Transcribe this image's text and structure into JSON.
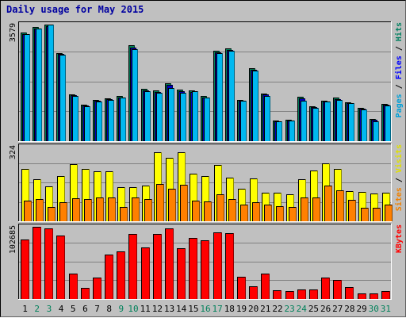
{
  "title": "Daily usage for May 2015",
  "chart_data": [
    {
      "type": "bar",
      "panel": "pages-files-hits",
      "categories": [
        "1",
        "2",
        "3",
        "4",
        "5",
        "6",
        "7",
        "8",
        "9",
        "10",
        "11",
        "12",
        "13",
        "14",
        "15",
        "16",
        "17",
        "18",
        "19",
        "20",
        "21",
        "22",
        "23",
        "24",
        "25",
        "26",
        "27",
        "28",
        "29",
        "30",
        "31"
      ],
      "weekend_days": [
        "2",
        "3",
        "9",
        "10",
        "16",
        "17",
        "23",
        "24",
        "30",
        "31"
      ],
      "ymax_label": "3579",
      "ylim": [
        0,
        3579
      ],
      "right_label": [
        {
          "text": "Pages",
          "color": "#00a0d8"
        },
        {
          "text": " / ",
          "color": "#000000"
        },
        {
          "text": "Files",
          "color": "#0000ff"
        },
        {
          "text": " / ",
          "color": "#000000"
        },
        {
          "text": "Hits",
          "color": "#008060"
        }
      ],
      "series": [
        {
          "name": "Hits",
          "color": "#00805a",
          "values": [
            3333,
            3503,
            3579,
            2711,
            1432,
            1114,
            1261,
            1305,
            1383,
            2952,
            1601,
            1547,
            1789,
            1571,
            1563,
            1385,
            2767,
            2854,
            1274,
            2246,
            1466,
            638,
            664,
            1355,
            1069,
            1248,
            1331,
            1198,
            1024,
            687,
            1151
          ]
        },
        {
          "name": "Files",
          "color": "#0000c0",
          "values": [
            3280,
            3460,
            3520,
            2690,
            1400,
            1090,
            1230,
            1280,
            1340,
            2880,
            1560,
            1510,
            1740,
            1530,
            1520,
            1350,
            2720,
            2810,
            1245,
            2200,
            1430,
            610,
            640,
            1320,
            1040,
            1210,
            1290,
            1170,
            1000,
            660,
            1120
          ]
        },
        {
          "name": "Pages",
          "color": "#00b8f0",
          "values": [
            3290,
            3453,
            3579,
            2658,
            1384,
            1074,
            1217,
            1258,
            1331,
            2825,
            1527,
            1497,
            1632,
            1484,
            1527,
            1335,
            2711,
            2784,
            1240,
            2164,
            1394,
            603,
            630,
            1245,
            1034,
            1211,
            1264,
            1161,
            965,
            603,
            1107
          ]
        }
      ]
    },
    {
      "type": "bar",
      "panel": "sites-visits",
      "ymax_label": "324",
      "ylim": [
        0,
        324
      ],
      "right_label": [
        {
          "text": "Sites",
          "color": "#f08000"
        },
        {
          "text": " / ",
          "color": "#000000"
        },
        {
          "text": "Visits",
          "color": "#e0e000"
        }
      ],
      "series": [
        {
          "name": "Visits",
          "color": "#ffff00",
          "values": [
            226,
            184,
            151,
            198,
            249,
            226,
            218,
            217,
            148,
            148,
            155,
            301,
            277,
            301,
            206,
            198,
            245,
            190,
            141,
            185,
            124,
            123,
            117,
            181,
            220,
            250,
            228,
            131,
            127,
            120,
            125
          ]
        },
        {
          "name": "Sites",
          "color": "#ff8000",
          "values": [
            88,
            98,
            62,
            83,
            99,
            98,
            102,
            102,
            63,
            105,
            98,
            163,
            141,
            157,
            90,
            85,
            117,
            98,
            73,
            81,
            73,
            65,
            62,
            103,
            103,
            155,
            135,
            92,
            60,
            57,
            74
          ]
        }
      ]
    },
    {
      "type": "bar",
      "panel": "kbytes",
      "ymax_label": "102685",
      "ylim": [
        0,
        102685
      ],
      "right_label": [
        {
          "text": "KBytes",
          "color": "#ff0000"
        }
      ],
      "series": [
        {
          "name": "KBytes",
          "color": "#ff0000",
          "values": [
            84963,
            102685,
            100147,
            89889,
            35965,
            15953,
            29963,
            62971,
            67967,
            92892,
            72871,
            92882,
            99976,
            71931,
            86838,
            83937,
            94877,
            93914,
            31970,
            17943,
            35991,
            11948,
            11014,
            13007,
            13007,
            29974,
            26947,
            17010,
            8011,
            8011,
            10876
          ]
        }
      ]
    }
  ]
}
